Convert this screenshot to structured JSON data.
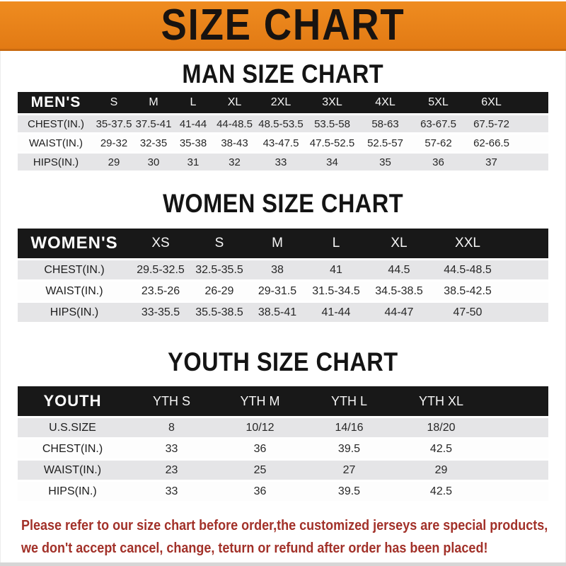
{
  "banner": {
    "title": "SIZE CHART",
    "bg_color": "#e8821c",
    "text_color": "#181310"
  },
  "colors": {
    "header_row_bg": "#181818",
    "gray_row_bg": "#e5e5e7",
    "white_row_bg": "#fdfdfd",
    "footer_text": "#a23129"
  },
  "sections": [
    {
      "heading": "MAN SIZE CHART",
      "table": {
        "header_label": "MEN'S",
        "columns": [
          "S",
          "M",
          "L",
          "XL",
          "2XL",
          "3XL",
          "4XL",
          "5XL",
          "6XL"
        ],
        "rows": [
          {
            "label": "CHEST(IN.)",
            "values": [
              "35-37.5",
              "37.5-41",
              "41-44",
              "44-48.5",
              "48.5-53.5",
              "53.5-58",
              "58-63",
              "63-67.5",
              "67.5-72"
            ]
          },
          {
            "label": "WAIST(IN.)",
            "values": [
              "29-32",
              "32-35",
              "35-38",
              "38-43",
              "43-47.5",
              "47.5-52.5",
              "52.5-57",
              "57-62",
              "62-66.5"
            ]
          },
          {
            "label": "HIPS(IN.)",
            "values": [
              "29",
              "30",
              "31",
              "32",
              "33",
              "34",
              "35",
              "36",
              "37"
            ]
          }
        ]
      }
    },
    {
      "heading": "WOMEN SIZE CHART",
      "table": {
        "header_label": "WOMEN'S",
        "columns": [
          "XS",
          "S",
          "M",
          "L",
          "XL",
          "XXL"
        ],
        "rows": [
          {
            "label": "CHEST(IN.)",
            "values": [
              "29.5-32.5",
              "32.5-35.5",
              "38",
              "41",
              "44.5",
              "44.5-48.5"
            ]
          },
          {
            "label": "WAIST(IN.)",
            "values": [
              "23.5-26",
              "26-29",
              "29-31.5",
              "31.5-34.5",
              "34.5-38.5",
              "38.5-42.5"
            ]
          },
          {
            "label": "HIPS(IN.)",
            "values": [
              "33-35.5",
              "35.5-38.5",
              "38.5-41",
              "41-44",
              "44-47",
              "47-50"
            ]
          }
        ]
      }
    },
    {
      "heading": "YOUTH SIZE CHART",
      "table": {
        "header_label": "YOUTH",
        "columns": [
          "YTH S",
          "YTH M",
          "YTH L",
          "YTH XL"
        ],
        "rows": [
          {
            "label": "U.S.SIZE",
            "values": [
              "8",
              "10/12",
              "14/16",
              "18/20"
            ]
          },
          {
            "label": "CHEST(IN.)",
            "values": [
              "33",
              "36",
              "39.5",
              "42.5"
            ]
          },
          {
            "label": "WAIST(IN.)",
            "values": [
              "23",
              "25",
              "27",
              "29"
            ]
          },
          {
            "label": "HIPS(IN.)",
            "values": [
              "33",
              "36",
              "39.5",
              "42.5"
            ]
          }
        ]
      }
    }
  ],
  "footer": {
    "line1": "Please refer to our size chart before order,the customized jerseys are special products,",
    "line2": "we don't accept cancel, change, teturn or refund after order has been placed!"
  }
}
